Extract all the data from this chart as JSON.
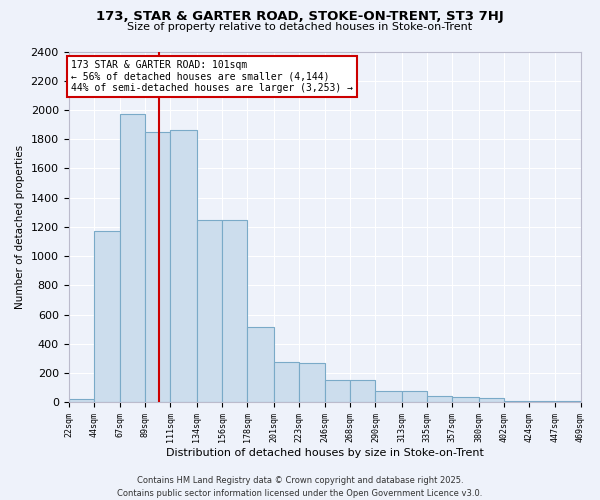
{
  "title": "173, STAR & GARTER ROAD, STOKE-ON-TRENT, ST3 7HJ",
  "subtitle": "Size of property relative to detached houses in Stoke-on-Trent",
  "xlabel": "Distribution of detached houses by size in Stoke-on-Trent",
  "ylabel": "Number of detached properties",
  "bar_color": "#ccdded",
  "bar_edge_color": "#7aaac8",
  "background_color": "#eef2fa",
  "grid_color": "#ffffff",
  "bins": [
    22,
    44,
    67,
    89,
    111,
    134,
    156,
    178,
    201,
    223,
    246,
    268,
    290,
    313,
    335,
    357,
    380,
    402,
    424,
    447,
    469
  ],
  "counts": [
    20,
    1170,
    1970,
    1850,
    1860,
    1250,
    1250,
    515,
    275,
    270,
    155,
    155,
    80,
    80,
    40,
    35,
    30,
    10,
    5,
    5
  ],
  "property_size": 101,
  "annotation_text": "173 STAR & GARTER ROAD: 101sqm\n← 56% of detached houses are smaller (4,144)\n44% of semi-detached houses are larger (3,253) →",
  "annotation_box_color": "#ffffff",
  "annotation_border_color": "#cc0000",
  "vline_color": "#cc0000",
  "ylim": [
    0,
    2400
  ],
  "footer": "Contains HM Land Registry data © Crown copyright and database right 2025.\nContains public sector information licensed under the Open Government Licence v3.0.",
  "tick_labels": [
    "22sqm",
    "44sqm",
    "67sqm",
    "89sqm",
    "111sqm",
    "134sqm",
    "156sqm",
    "178sqm",
    "201sqm",
    "223sqm",
    "246sqm",
    "268sqm",
    "290sqm",
    "313sqm",
    "335sqm",
    "357sqm",
    "380sqm",
    "402sqm",
    "424sqm",
    "447sqm",
    "469sqm"
  ]
}
